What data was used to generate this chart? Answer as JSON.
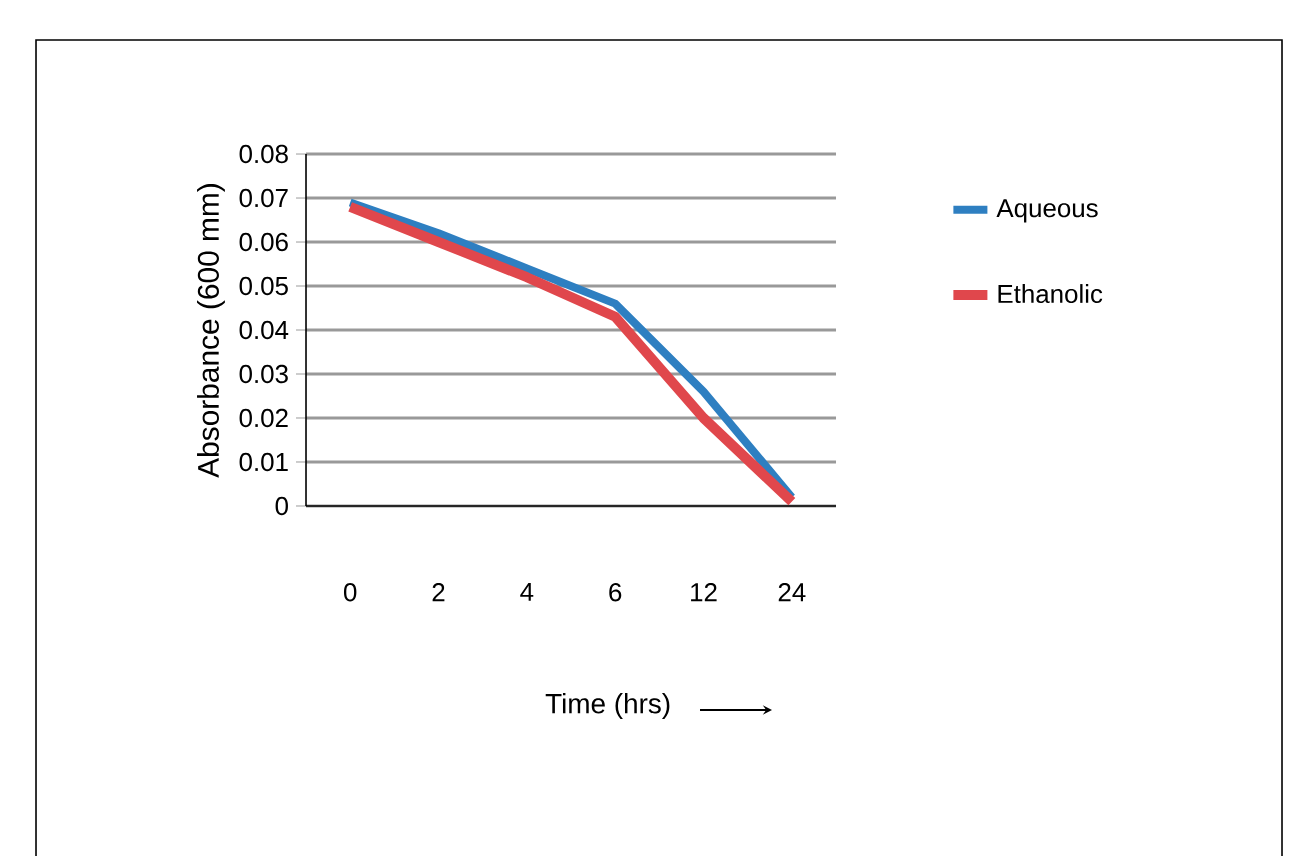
{
  "chart_data": {
    "type": "line",
    "xlabel": "Time (hrs)",
    "ylabel": "Absorbance (600 mm)",
    "categories": [
      "0",
      "2",
      "4",
      "6",
      "12",
      "24"
    ],
    "series": [
      {
        "name": "Aqueous",
        "color": "#2e7fc1",
        "values": [
          0.069,
          0.062,
          0.054,
          0.046,
          0.026,
          0.002
        ]
      },
      {
        "name": "Ethanolic",
        "color": "#e0474c",
        "values": [
          0.068,
          0.06,
          0.052,
          0.043,
          0.02,
          0.001
        ]
      }
    ],
    "ylim": [
      0,
      0.08
    ],
    "yticks": [
      0,
      0.01,
      0.02,
      0.03,
      0.04,
      0.05,
      0.06,
      0.07,
      0.08
    ],
    "grid": "y",
    "legend": "right",
    "marker": "none",
    "line_style": "solid"
  }
}
